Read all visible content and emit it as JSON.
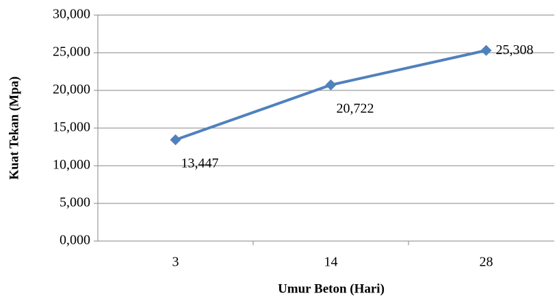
{
  "chart_data": {
    "type": "line",
    "x_label": "Umur Beton (Hari)",
    "y_label": "Kuat Tekan (Mpa)",
    "categories": [
      "3",
      "14",
      "28"
    ],
    "series": [
      {
        "name": "Kuat Tekan",
        "color": "#4f81bd",
        "values": [
          13.447,
          20.722,
          25.308
        ],
        "value_labels": [
          "13,447",
          "20,722",
          "25,308"
        ]
      }
    ],
    "ylim": [
      0,
      30
    ],
    "yticks": [
      {
        "value": 0,
        "label": "0,000"
      },
      {
        "value": 5,
        "label": "5,000"
      },
      {
        "value": 10,
        "label": "10,000"
      },
      {
        "value": 15,
        "label": "15,000"
      },
      {
        "value": 20,
        "label": "20,000"
      },
      {
        "value": 25,
        "label": "25,000"
      },
      {
        "value": 30,
        "label": "30,000"
      }
    ],
    "grid": true
  }
}
